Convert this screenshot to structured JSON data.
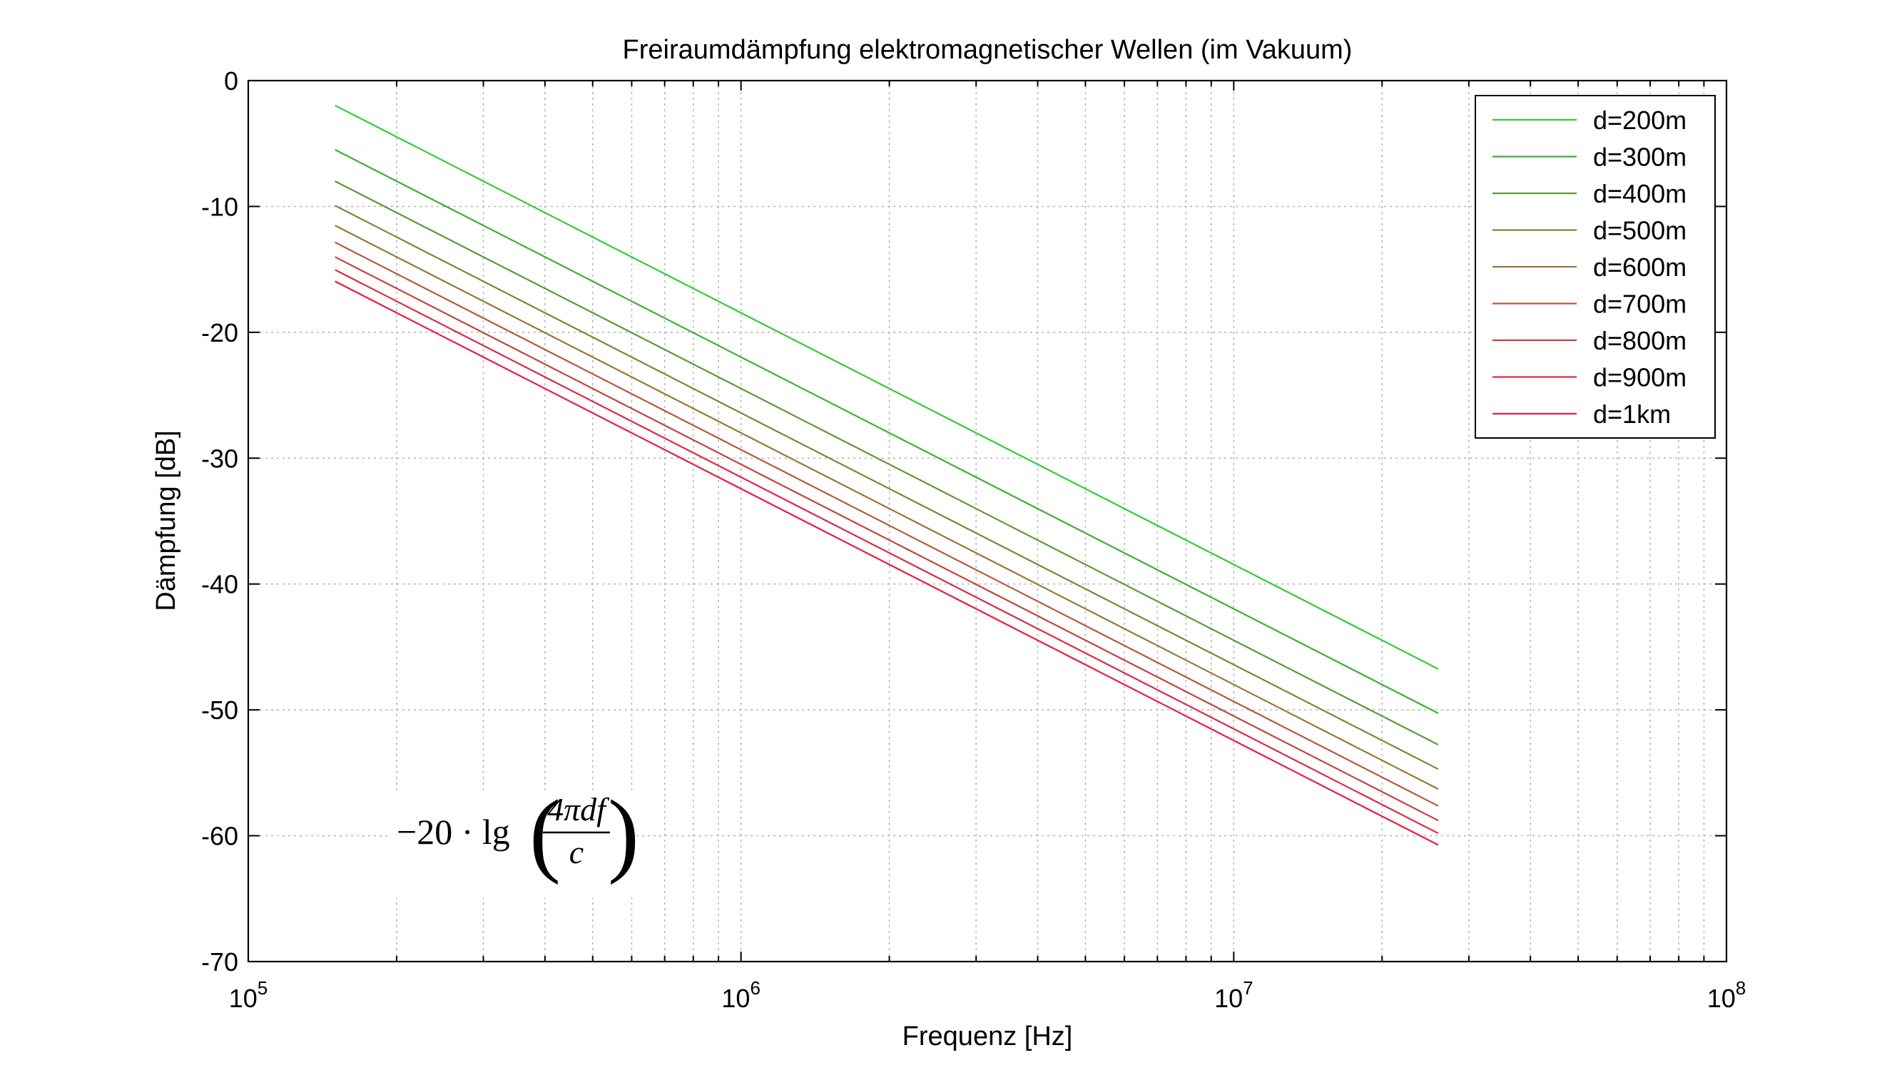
{
  "chart_data": {
    "type": "line",
    "title": "Freiraumdämpfung elektromagnetischer Wellen (im Vakuum)",
    "xlabel": "Frequenz [Hz]",
    "ylabel": "Dämpfung [dB]",
    "x_scale": "log",
    "xlim": [
      100000,
      100000000
    ],
    "ylim": [
      -70,
      0
    ],
    "x_ticks": [
      {
        "base": "10",
        "exp": "5",
        "value": 100000
      },
      {
        "base": "10",
        "exp": "6",
        "value": 1000000
      },
      {
        "base": "10",
        "exp": "7",
        "value": 10000000
      },
      {
        "base": "10",
        "exp": "8",
        "value": 100000000
      }
    ],
    "y_ticks": [
      "0",
      "-10",
      "-20",
      "-30",
      "-40",
      "-50",
      "-60",
      "-70"
    ],
    "grid": true,
    "legend_position": "top-right",
    "x": [
      150000,
      26000000
    ],
    "series": [
      {
        "name": "d=200m",
        "color": "#33cc33",
        "values": [
          -1.97,
          -46.75
        ]
      },
      {
        "name": "d=300m",
        "color": "#3fae36",
        "values": [
          -5.49,
          -50.27
        ]
      },
      {
        "name": "d=400m",
        "color": "#5d9838",
        "values": [
          -7.99,
          -52.77
        ]
      },
      {
        "name": "d=500m",
        "color": "#7a8838",
        "values": [
          -9.93,
          -54.71
        ]
      },
      {
        "name": "d=600m",
        "color": "#967838",
        "values": [
          -11.51,
          -56.29
        ]
      },
      {
        "name": "d=700m",
        "color": "#b05c3a",
        "values": [
          -12.85,
          -57.63
        ]
      },
      {
        "name": "d=800m",
        "color": "#c6433c",
        "values": [
          -14.01,
          -58.79
        ]
      },
      {
        "name": "d=900m",
        "color": "#dc2a4a",
        "values": [
          -15.03,
          -59.81
        ]
      },
      {
        "name": "d=1km",
        "color": "#ec1a40",
        "values": [
          -15.95,
          -60.73
        ]
      }
    ],
    "annotation": {
      "prefix": "−20 · lg",
      "numerator": "4πdf",
      "denominator": "c"
    }
  }
}
